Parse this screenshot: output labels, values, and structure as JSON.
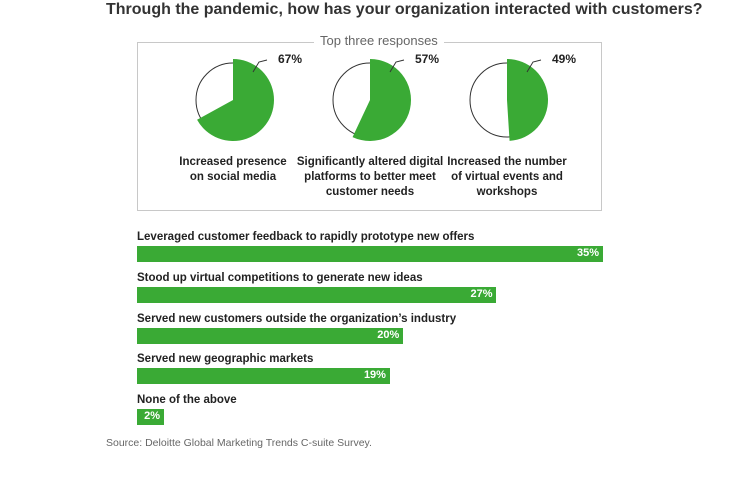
{
  "title": "Through the pandemic, how has your organization interacted with customers?",
  "top_label": "Top three responses",
  "source": "Source: Deloitte Global Marketing Trends C-suite Survey.",
  "colors": {
    "green": "#3aaa35",
    "outline": "#333333"
  },
  "chart_data": [
    {
      "type": "pie",
      "title": "Top three responses",
      "items": [
        {
          "label": "Increased presence\non social media",
          "value": 67,
          "display": "67%"
        },
        {
          "label": "Significantly altered digital\nplatforms to better meet\ncustomer needs",
          "value": 57,
          "display": "57%"
        },
        {
          "label": "Increased the number\nof virtual events and\nworkshops",
          "value": 49,
          "display": "49%"
        }
      ]
    },
    {
      "type": "bar",
      "orientation": "horizontal",
      "categories": [
        "Leveraged customer feedback to rapidly prototype new offers",
        "Stood up virtual competitions to generate new ideas",
        "Served new customers outside the organization’s industry",
        "Served new geographic markets",
        "None of the above"
      ],
      "values": [
        35,
        27,
        20,
        19,
        2
      ],
      "value_labels": [
        "35%",
        "27%",
        "20%",
        "19%",
        "2%"
      ]
    }
  ]
}
